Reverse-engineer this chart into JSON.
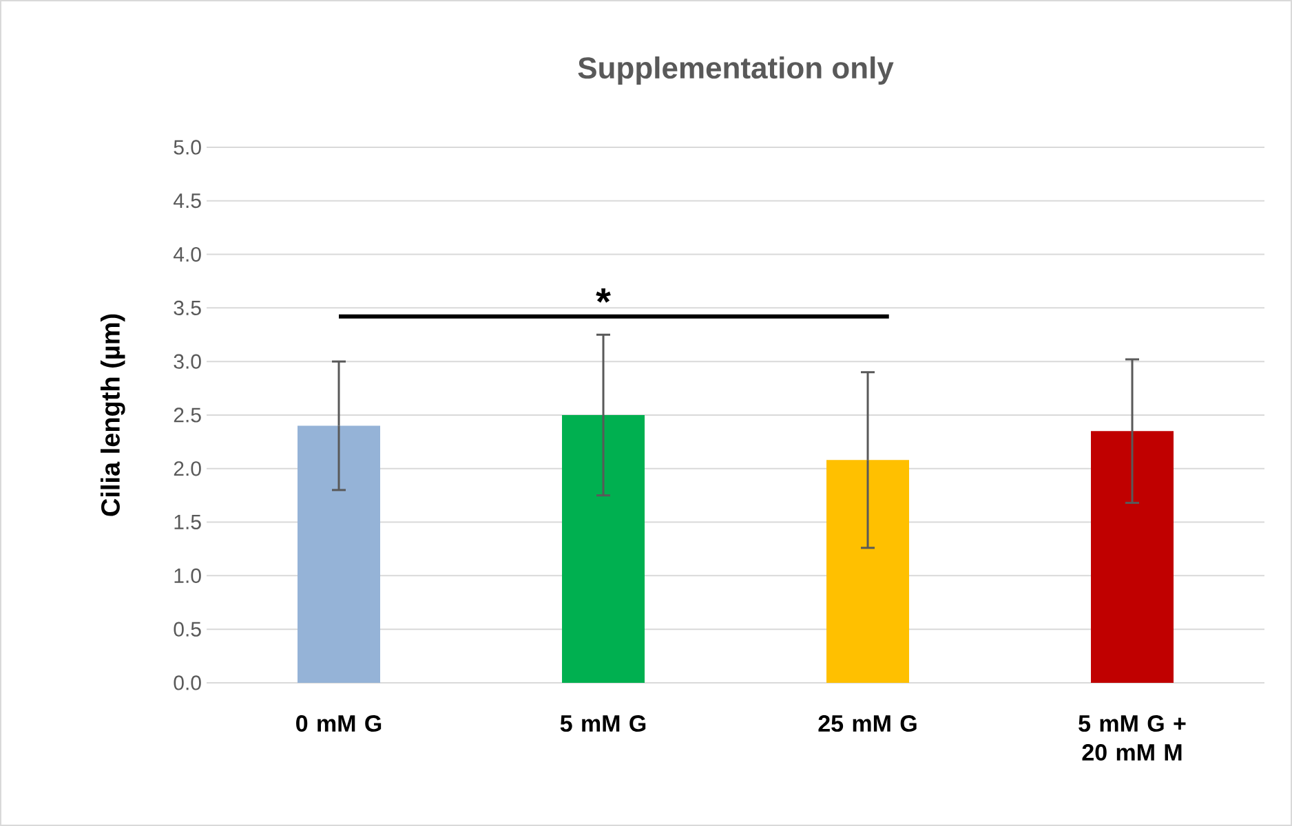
{
  "chart_data": {
    "type": "bar",
    "title": "Supplementation only",
    "ylabel": "Cilia length (µm)",
    "categories": [
      "0 mM G",
      "5 mM G",
      "25 mM G",
      "5 mM G + 20 mM M"
    ],
    "values": [
      2.4,
      2.5,
      2.08,
      2.35
    ],
    "errors": [
      0.6,
      0.75,
      0.82,
      0.67
    ],
    "colors": [
      "#95b3d7",
      "#00b050",
      "#ffc000",
      "#c00000"
    ],
    "ylim": [
      0,
      5
    ],
    "yticks": [
      {
        "value": 0,
        "label": "0.0"
      },
      {
        "value": 0.5,
        "label": "0.5"
      },
      {
        "value": 1,
        "label": "1.0"
      },
      {
        "value": 1.5,
        "label": "1.5"
      },
      {
        "value": 2,
        "label": "2.0"
      },
      {
        "value": 2.5,
        "label": "2.5"
      },
      {
        "value": 3,
        "label": "3.0"
      },
      {
        "value": 3.5,
        "label": "3.5"
      },
      {
        "value": 4,
        "label": "4.0"
      },
      {
        "value": 4.5,
        "label": "4.5"
      },
      {
        "value": 5,
        "label": "5.0"
      }
    ],
    "grid": "y",
    "annotations": [
      "*"
    ]
  }
}
